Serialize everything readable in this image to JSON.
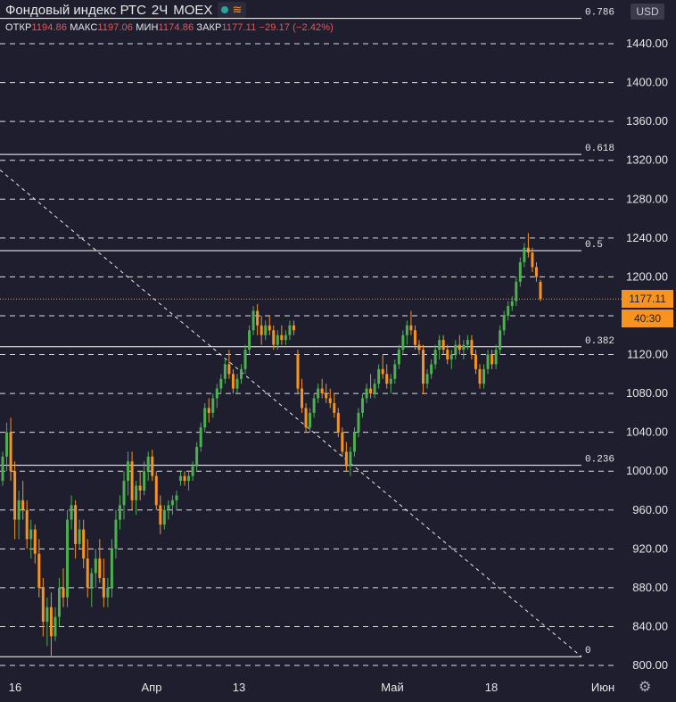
{
  "header": {
    "symbol": "Фондовый индекс РТС",
    "interval": "2Ч",
    "exchange": "MOEX",
    "currency": "USD"
  },
  "ohlc": {
    "open_label": "ОТКР",
    "open": "1194.86",
    "high_label": "МАКС",
    "high": "1197.06",
    "low_label": "МИН",
    "low": "1174.86",
    "close_label": "ЗАКР",
    "close": "1177.11",
    "change": "−29.17 (−2.42%)"
  },
  "last_price": {
    "value": "1177.11",
    "countdown": "40:30"
  },
  "colors": {
    "background": "#1e1e2f",
    "up": "#4caf50",
    "down": "#f7931e",
    "grid": "#ffffff",
    "last_price_line": "#f7931e"
  },
  "icons": {
    "status": "dot-icon",
    "wave": "wave-icon",
    "settings": "gear-icon"
  },
  "chart_data": {
    "type": "candlestick",
    "title": "Фондовый индекс РТС",
    "ylim": [
      795,
      1465
    ],
    "y_ticks": [
      "800.00",
      "840.00",
      "880.00",
      "920.00",
      "960.00",
      "1000.00",
      "1040.00",
      "1080.00",
      "1120.00",
      "1160.00",
      "1200.00",
      "1240.00",
      "1280.00",
      "1320.00",
      "1360.00",
      "1400.00",
      "1440.00"
    ],
    "x_ticks": [
      "16",
      "Апр",
      "13",
      "Май",
      "18",
      "Июн"
    ],
    "fibonacci": [
      {
        "level": "0",
        "price": 809
      },
      {
        "level": "0.236",
        "price": 1006
      },
      {
        "level": "0.382",
        "price": 1128
      },
      {
        "level": "0.5",
        "price": 1227
      },
      {
        "level": "0.618",
        "price": 1326
      },
      {
        "level": "0.786",
        "price": 1466
      }
    ],
    "trend_line": {
      "start_price": 1310,
      "end_price": 809
    },
    "series": [
      {
        "values": [
          [
            990,
            1020,
            985,
            1015
          ],
          [
            1015,
            1050,
            1000,
            1040
          ],
          [
            1040,
            1055,
            990,
            1000
          ],
          [
            1000,
            1010,
            930,
            950
          ],
          [
            950,
            980,
            930,
            970
          ],
          [
            970,
            990,
            950,
            960
          ],
          [
            960,
            970,
            920,
            930
          ],
          [
            930,
            950,
            910,
            940
          ],
          [
            940,
            945,
            905,
            915
          ],
          [
            915,
            930,
            870,
            880
          ],
          [
            880,
            890,
            830,
            845
          ],
          [
            845,
            870,
            820,
            860
          ],
          [
            860,
            875,
            810,
            830
          ],
          [
            830,
            860,
            825,
            850
          ],
          [
            850,
            890,
            840,
            880
          ],
          [
            880,
            900,
            860,
            870
          ],
          [
            870,
            960,
            860,
            950
          ],
          [
            950,
            975,
            940,
            965
          ],
          [
            965,
            970,
            910,
            925
          ],
          [
            925,
            950,
            920,
            940
          ],
          [
            940,
            950,
            900,
            910
          ],
          [
            910,
            930,
            870,
            880
          ],
          [
            880,
            900,
            860,
            895
          ],
          [
            895,
            920,
            880,
            910
          ],
          [
            910,
            930,
            885,
            890
          ],
          [
            890,
            910,
            860,
            870
          ],
          [
            870,
            890,
            860,
            880
          ],
          [
            880,
            930,
            870,
            920
          ],
          [
            920,
            960,
            910,
            950
          ],
          [
            950,
            975,
            940,
            965
          ],
          [
            965,
            1000,
            950,
            990
          ],
          [
            990,
            1020,
            975,
            1010
          ],
          [
            1010,
            1020,
            960,
            970
          ],
          [
            970,
            990,
            955,
            985
          ],
          [
            985,
            1000,
            970,
            980
          ],
          [
            980,
            1010,
            975,
            1000
          ],
          [
            1000,
            1020,
            990,
            1015
          ],
          [
            1015,
            1022,
            990,
            995
          ],
          [
            995,
            1000,
            960,
            965
          ],
          [
            965,
            975,
            935,
            945
          ],
          [
            945,
            965,
            940,
            960
          ],
          [
            960,
            970,
            950,
            965
          ],
          [
            965,
            975,
            955,
            970
          ],
          [
            970,
            980,
            960,
            975
          ],
          [
            990,
            1000,
            985,
            995
          ],
          [
            995,
            1000,
            985,
            990
          ],
          [
            990,
            1000,
            980,
            995
          ],
          [
            995,
            1010,
            990,
            1005
          ],
          [
            1005,
            1030,
            1000,
            1025
          ],
          [
            1025,
            1050,
            1020,
            1045
          ],
          [
            1045,
            1070,
            1040,
            1065
          ],
          [
            1065,
            1075,
            1050,
            1060
          ],
          [
            1060,
            1080,
            1055,
            1075
          ],
          [
            1075,
            1090,
            1065,
            1085
          ],
          [
            1085,
            1100,
            1080,
            1095
          ],
          [
            1095,
            1115,
            1090,
            1110
          ],
          [
            1110,
            1125,
            1095,
            1100
          ],
          [
            1100,
            1105,
            1080,
            1085
          ],
          [
            1085,
            1100,
            1080,
            1095
          ],
          [
            1095,
            1110,
            1090,
            1105
          ],
          [
            1105,
            1130,
            1100,
            1125
          ],
          [
            1125,
            1150,
            1120,
            1145
          ],
          [
            1145,
            1170,
            1140,
            1165
          ],
          [
            1165,
            1172,
            1140,
            1150
          ],
          [
            1150,
            1160,
            1130,
            1140
          ],
          [
            1140,
            1155,
            1135,
            1150
          ],
          [
            1150,
            1160,
            1140,
            1145
          ],
          [
            1145,
            1150,
            1125,
            1130
          ],
          [
            1130,
            1145,
            1125,
            1140
          ],
          [
            1140,
            1150,
            1130,
            1135
          ],
          [
            1135,
            1145,
            1130,
            1140
          ],
          [
            1140,
            1155,
            1135,
            1150
          ],
          [
            1150,
            1155,
            1140,
            1145
          ],
          [
            1120,
            1125,
            1080,
            1085
          ],
          [
            1085,
            1095,
            1060,
            1065
          ],
          [
            1065,
            1070,
            1040,
            1045
          ],
          [
            1045,
            1065,
            1040,
            1060
          ],
          [
            1060,
            1080,
            1055,
            1075
          ],
          [
            1075,
            1090,
            1070,
            1085
          ],
          [
            1085,
            1095,
            1075,
            1080
          ],
          [
            1080,
            1090,
            1070,
            1075
          ],
          [
            1075,
            1085,
            1065,
            1070
          ],
          [
            1070,
            1080,
            1055,
            1060
          ],
          [
            1060,
            1065,
            1035,
            1040
          ],
          [
            1040,
            1045,
            1015,
            1020
          ],
          [
            1020,
            1030,
            1000,
            1005
          ],
          [
            1005,
            1025,
            995,
            1020
          ],
          [
            1020,
            1045,
            1015,
            1040
          ],
          [
            1040,
            1065,
            1035,
            1060
          ],
          [
            1060,
            1080,
            1055,
            1075
          ],
          [
            1075,
            1090,
            1070,
            1085
          ],
          [
            1085,
            1100,
            1075,
            1080
          ],
          [
            1080,
            1095,
            1075,
            1090
          ],
          [
            1090,
            1110,
            1085,
            1105
          ],
          [
            1105,
            1120,
            1095,
            1100
          ],
          [
            1100,
            1110,
            1085,
            1090
          ],
          [
            1090,
            1100,
            1080,
            1095
          ],
          [
            1095,
            1115,
            1090,
            1110
          ],
          [
            1110,
            1130,
            1105,
            1125
          ],
          [
            1125,
            1145,
            1120,
            1140
          ],
          [
            1140,
            1155,
            1130,
            1150
          ],
          [
            1150,
            1165,
            1140,
            1145
          ],
          [
            1145,
            1150,
            1125,
            1130
          ],
          [
            1130,
            1135,
            1120,
            1125
          ],
          [
            1125,
            1130,
            1080,
            1090
          ],
          [
            1090,
            1105,
            1085,
            1100
          ],
          [
            1100,
            1115,
            1095,
            1110
          ],
          [
            1110,
            1130,
            1105,
            1125
          ],
          [
            1125,
            1140,
            1115,
            1135
          ],
          [
            1135,
            1140,
            1120,
            1125
          ],
          [
            1125,
            1130,
            1110,
            1115
          ],
          [
            1115,
            1125,
            1105,
            1120
          ],
          [
            1120,
            1135,
            1115,
            1130
          ],
          [
            1130,
            1140,
            1120,
            1125
          ],
          [
            1125,
            1135,
            1115,
            1130
          ],
          [
            1130,
            1140,
            1125,
            1135
          ],
          [
            1135,
            1140,
            1115,
            1120
          ],
          [
            1120,
            1125,
            1100,
            1105
          ],
          [
            1105,
            1110,
            1085,
            1090
          ],
          [
            1090,
            1110,
            1085,
            1105
          ],
          [
            1105,
            1125,
            1100,
            1120
          ],
          [
            1120,
            1125,
            1105,
            1110
          ],
          [
            1110,
            1130,
            1105,
            1125
          ],
          [
            1125,
            1150,
            1120,
            1145
          ],
          [
            1145,
            1165,
            1140,
            1160
          ],
          [
            1160,
            1175,
            1155,
            1170
          ],
          [
            1170,
            1180,
            1165,
            1175
          ],
          [
            1175,
            1200,
            1170,
            1195
          ],
          [
            1195,
            1220,
            1190,
            1215
          ],
          [
            1215,
            1235,
            1210,
            1230
          ],
          [
            1230,
            1245,
            1220,
            1225
          ],
          [
            1225,
            1230,
            1205,
            1210
          ],
          [
            1210,
            1215,
            1195,
            1200
          ],
          [
            1194.86,
            1197.06,
            1174.86,
            1177.11
          ]
        ]
      }
    ]
  }
}
